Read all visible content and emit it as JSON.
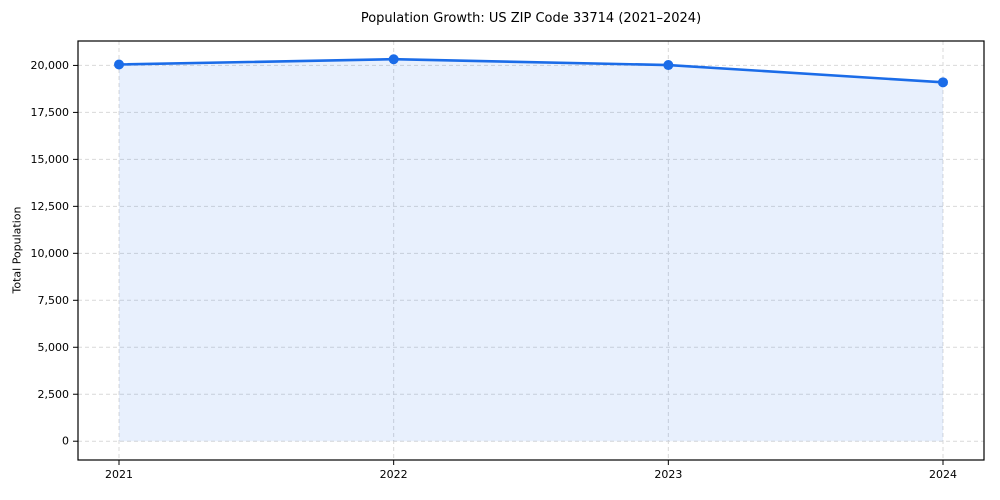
{
  "chart_data": {
    "type": "area",
    "title": "Population Growth: US ZIP Code 33714 (2021–2024)",
    "xlabel": "",
    "ylabel": "Total Population",
    "series_name": "Total Population",
    "categories": [
      "2021",
      "2022",
      "2023",
      "2024"
    ],
    "values": [
      20050,
      20330,
      20020,
      19100
    ],
    "ylim": [
      -1000,
      21300
    ],
    "yticks": [
      0,
      2500,
      5000,
      7500,
      10000,
      12500,
      15000,
      17500,
      20000
    ],
    "ytick_labels": [
      "0",
      "2,500",
      "5,000",
      "7,500",
      "10,000",
      "12,500",
      "15,000",
      "17,500",
      "20,000"
    ],
    "xtick_labels": [
      "2021",
      "2022",
      "2023",
      "2024"
    ],
    "grid": true,
    "grid_style": "dashed",
    "legend": "none",
    "area_baseline": 0,
    "colors": {
      "line": "#1b6ce8",
      "marker": "#1b6ce8",
      "area_fill_rgba": "rgba(30, 110, 232, 0.10)",
      "grid": "#d9d9d9",
      "spine": "#000000",
      "tick_text": "#000000",
      "background": "#ffffff"
    }
  }
}
